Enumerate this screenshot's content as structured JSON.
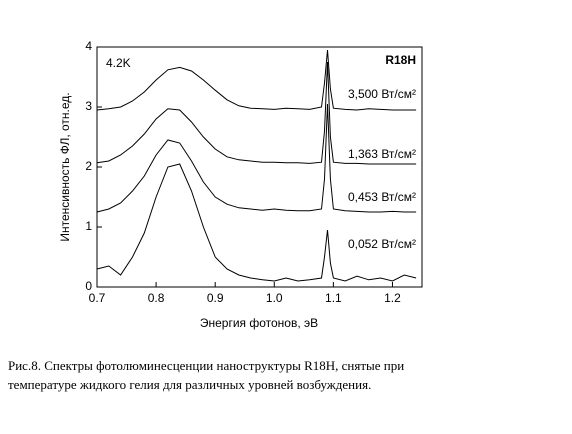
{
  "chart_data": {
    "type": "line",
    "annotations": [
      "4.2K",
      "R18H"
    ],
    "x_label": "Энергия фотонов, эВ",
    "y_label": "Интенсивность ФЛ, отн.ед.",
    "caption": [
      "Рис.8. Спектры фотолюминесценции наноструктуры R18H, снятые при",
      "температуре жидкого гелия для различных уровней возбуждения."
    ],
    "x": [
      0.7,
      0.72,
      0.74,
      0.76,
      0.78,
      0.8,
      0.82,
      0.84,
      0.86,
      0.88,
      0.9,
      0.92,
      0.94,
      0.96,
      0.98,
      1.0,
      1.02,
      1.04,
      1.06,
      1.08,
      1.085,
      1.09,
      1.095,
      1.1,
      1.12,
      1.14,
      1.16,
      1.18,
      1.2,
      1.22,
      1.24
    ],
    "series": [
      {
        "name": "3,500 Вт/см²",
        "color": "#000000",
        "values": [
          2.95,
          2.97,
          3.0,
          3.1,
          3.25,
          3.45,
          3.62,
          3.66,
          3.6,
          3.45,
          3.28,
          3.12,
          3.02,
          2.98,
          2.97,
          2.96,
          2.98,
          2.97,
          2.96,
          3.0,
          3.4,
          3.95,
          3.3,
          2.98,
          2.96,
          2.95,
          2.97,
          2.96,
          2.95,
          2.95,
          2.95
        ]
      },
      {
        "name": "1,363 Вт/см²",
        "color": "#000000",
        "values": [
          2.07,
          2.1,
          2.2,
          2.35,
          2.55,
          2.8,
          2.97,
          2.95,
          2.75,
          2.5,
          2.3,
          2.17,
          2.12,
          2.1,
          2.08,
          2.08,
          2.07,
          2.07,
          2.06,
          2.08,
          2.6,
          3.75,
          2.5,
          2.08,
          2.06,
          2.06,
          2.05,
          2.05,
          2.05,
          2.05,
          2.05
        ]
      },
      {
        "name": "0,453 Вт/см²",
        "color": "#000000",
        "values": [
          1.25,
          1.3,
          1.4,
          1.6,
          1.85,
          2.2,
          2.45,
          2.4,
          2.1,
          1.75,
          1.5,
          1.38,
          1.32,
          1.3,
          1.28,
          1.3,
          1.28,
          1.27,
          1.27,
          1.3,
          1.8,
          3.05,
          1.8,
          1.3,
          1.27,
          1.26,
          1.25,
          1.25,
          1.26,
          1.25,
          1.25
        ]
      },
      {
        "name": "0,052 Вт/см²",
        "color": "#000000",
        "values": [
          0.3,
          0.35,
          0.2,
          0.5,
          0.9,
          1.5,
          2.0,
          2.05,
          1.6,
          1.0,
          0.5,
          0.3,
          0.2,
          0.15,
          0.12,
          0.1,
          0.15,
          0.1,
          0.12,
          0.15,
          0.5,
          0.95,
          0.4,
          0.15,
          0.1,
          0.18,
          0.12,
          0.15,
          0.1,
          0.2,
          0.15
        ]
      }
    ],
    "xlim": [
      0.7,
      1.25
    ],
    "ylim": [
      0,
      4
    ],
    "xticks": [
      0.7,
      0.8,
      0.9,
      {
        "value": 1,
        "label": "1.0"
      },
      1.1,
      1.2
    ],
    "yticks": [
      0,
      1,
      2,
      3,
      4
    ]
  }
}
